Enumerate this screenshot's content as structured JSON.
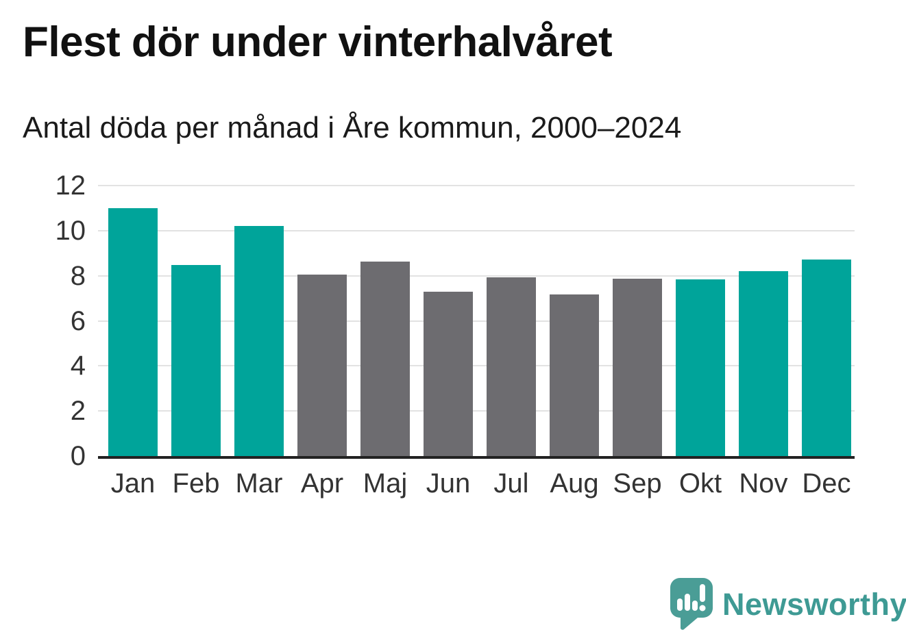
{
  "chart_data": {
    "type": "bar",
    "title": "Flest dör under vinterhalvåret",
    "subtitle": "Antal döda per månad i Åre kommun, 2000–2024",
    "categories": [
      "Jan",
      "Feb",
      "Mar",
      "Apr",
      "Maj",
      "Jun",
      "Jul",
      "Aug",
      "Sep",
      "Okt",
      "Nov",
      "Dec"
    ],
    "values": [
      11.0,
      8.48,
      10.2,
      8.04,
      8.64,
      7.28,
      7.92,
      7.16,
      7.88,
      7.84,
      8.2,
      8.72
    ],
    "highlighted_months": [
      true,
      true,
      true,
      false,
      false,
      false,
      false,
      false,
      false,
      true,
      true,
      true
    ],
    "highlight_color": "#00a49a",
    "base_color": "#6d6c70",
    "xlabel": "",
    "ylabel": "",
    "ylim": [
      0,
      12
    ],
    "yticks": [
      0,
      2,
      4,
      6,
      8,
      10,
      12
    ],
    "grid": true,
    "gridline_color": "#e2e2e2",
    "axis_line_color": "#222222",
    "legend": "none"
  },
  "branding": {
    "logo_text": "Newsworthy",
    "logo_text_color": "#3e9a94",
    "logo_icon": "newsworthy-speech-bubble-bar-chart-icon",
    "logo_icon_color": "#4a9d96"
  }
}
